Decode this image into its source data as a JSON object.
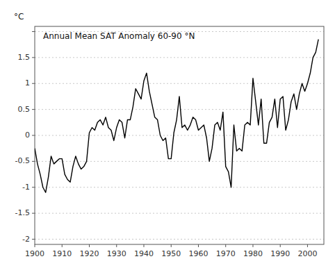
{
  "chart_data": {
    "type": "line",
    "title": "Annual Mean SAT Anomaly 60-90 °N",
    "y_label": "°C",
    "x": [
      1900,
      1901,
      1902,
      1903,
      1904,
      1905,
      1906,
      1907,
      1908,
      1909,
      1910,
      1911,
      1912,
      1913,
      1914,
      1915,
      1916,
      1917,
      1918,
      1919,
      1920,
      1921,
      1922,
      1923,
      1924,
      1925,
      1926,
      1927,
      1928,
      1929,
      1930,
      1931,
      1932,
      1933,
      1934,
      1935,
      1936,
      1937,
      1938,
      1939,
      1940,
      1941,
      1942,
      1943,
      1944,
      1945,
      1946,
      1947,
      1948,
      1949,
      1950,
      1951,
      1952,
      1953,
      1954,
      1955,
      1956,
      1957,
      1958,
      1959,
      1960,
      1961,
      1962,
      1963,
      1964,
      1965,
      1966,
      1967,
      1968,
      1969,
      1970,
      1971,
      1972,
      1973,
      1974,
      1975,
      1976,
      1977,
      1978,
      1979,
      1980,
      1981,
      1982,
      1983,
      1984,
      1985,
      1986,
      1987,
      1988,
      1989,
      1990,
      1991,
      1992,
      1993,
      1994,
      1995,
      1996,
      1997,
      1998,
      1999,
      2000,
      2001,
      2002,
      2003,
      2004
    ],
    "values": [
      -0.25,
      -0.55,
      -0.75,
      -1.0,
      -1.1,
      -0.8,
      -0.4,
      -0.55,
      -0.5,
      -0.45,
      -0.45,
      -0.75,
      -0.85,
      -0.9,
      -0.6,
      -0.4,
      -0.55,
      -0.65,
      -0.6,
      -0.5,
      0.05,
      0.15,
      0.1,
      0.25,
      0.3,
      0.2,
      0.35,
      0.15,
      0.1,
      -0.1,
      0.15,
      0.3,
      0.25,
      -0.05,
      0.3,
      0.3,
      0.55,
      0.9,
      0.8,
      0.7,
      1.05,
      1.2,
      0.85,
      0.6,
      0.35,
      0.3,
      0.0,
      -0.1,
      -0.05,
      -0.45,
      -0.45,
      0.05,
      0.3,
      0.75,
      0.15,
      0.2,
      0.1,
      0.2,
      0.35,
      0.3,
      0.1,
      0.15,
      0.2,
      -0.05,
      -0.5,
      -0.25,
      0.2,
      0.25,
      0.1,
      0.45,
      -0.6,
      -0.7,
      -1.0,
      0.2,
      -0.3,
      -0.25,
      -0.3,
      0.2,
      0.25,
      0.2,
      1.1,
      0.65,
      0.2,
      0.7,
      -0.15,
      -0.15,
      0.25,
      0.35,
      0.7,
      0.15,
      0.7,
      0.75,
      0.1,
      0.3,
      0.65,
      0.8,
      0.5,
      0.8,
      1.0,
      0.85,
      1.0,
      1.2,
      1.5,
      1.6,
      1.85
    ],
    "color": "#000000",
    "xlim": [
      1900,
      2006
    ],
    "ylim": [
      -2.1,
      2.1
    ],
    "xticks": [
      1900,
      1910,
      1920,
      1930,
      1940,
      1950,
      1960,
      1970,
      1980,
      1990,
      2000
    ],
    "yticks": [
      -2,
      -1.5,
      -1,
      -0.5,
      0,
      0.5,
      1,
      1.5,
      {
        "value": 2,
        "label": null
      }
    ],
    "grid": true
  }
}
